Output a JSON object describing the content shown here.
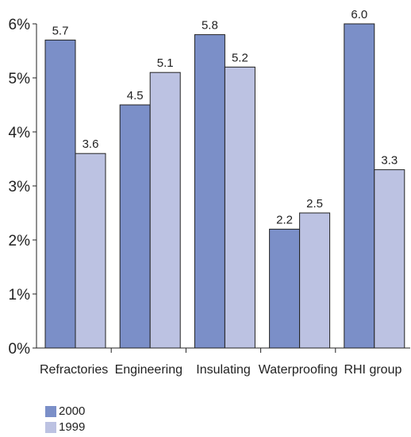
{
  "chart_data": {
    "type": "bar",
    "categories": [
      "Refractories",
      "Engineering",
      "Insulating",
      "Waterproofing",
      "RHI group"
    ],
    "series": [
      {
        "name": "2000",
        "values": [
          5.7,
          4.5,
          5.8,
          2.2,
          6.0
        ],
        "color": "#7b8fc8"
      },
      {
        "name": "1999",
        "values": [
          3.6,
          5.1,
          5.2,
          2.5,
          3.3
        ],
        "color": "#bcc2e2"
      }
    ],
    "value_labels": [
      [
        "5.7",
        "4.5",
        "5.8",
        "2.2",
        "6.0"
      ],
      [
        "3.6",
        "5.1",
        "5.2",
        "2.5",
        "3.3"
      ]
    ],
    "yticks": [
      0,
      1,
      2,
      3,
      4,
      5,
      6
    ],
    "ytick_labels": [
      "0%",
      "1%",
      "2%",
      "3%",
      "4%",
      "5%",
      "6%"
    ],
    "ylim": [
      0,
      6
    ],
    "grid": false,
    "legend_position": "bottom-left",
    "title": "",
    "xlabel": "",
    "ylabel": ""
  }
}
